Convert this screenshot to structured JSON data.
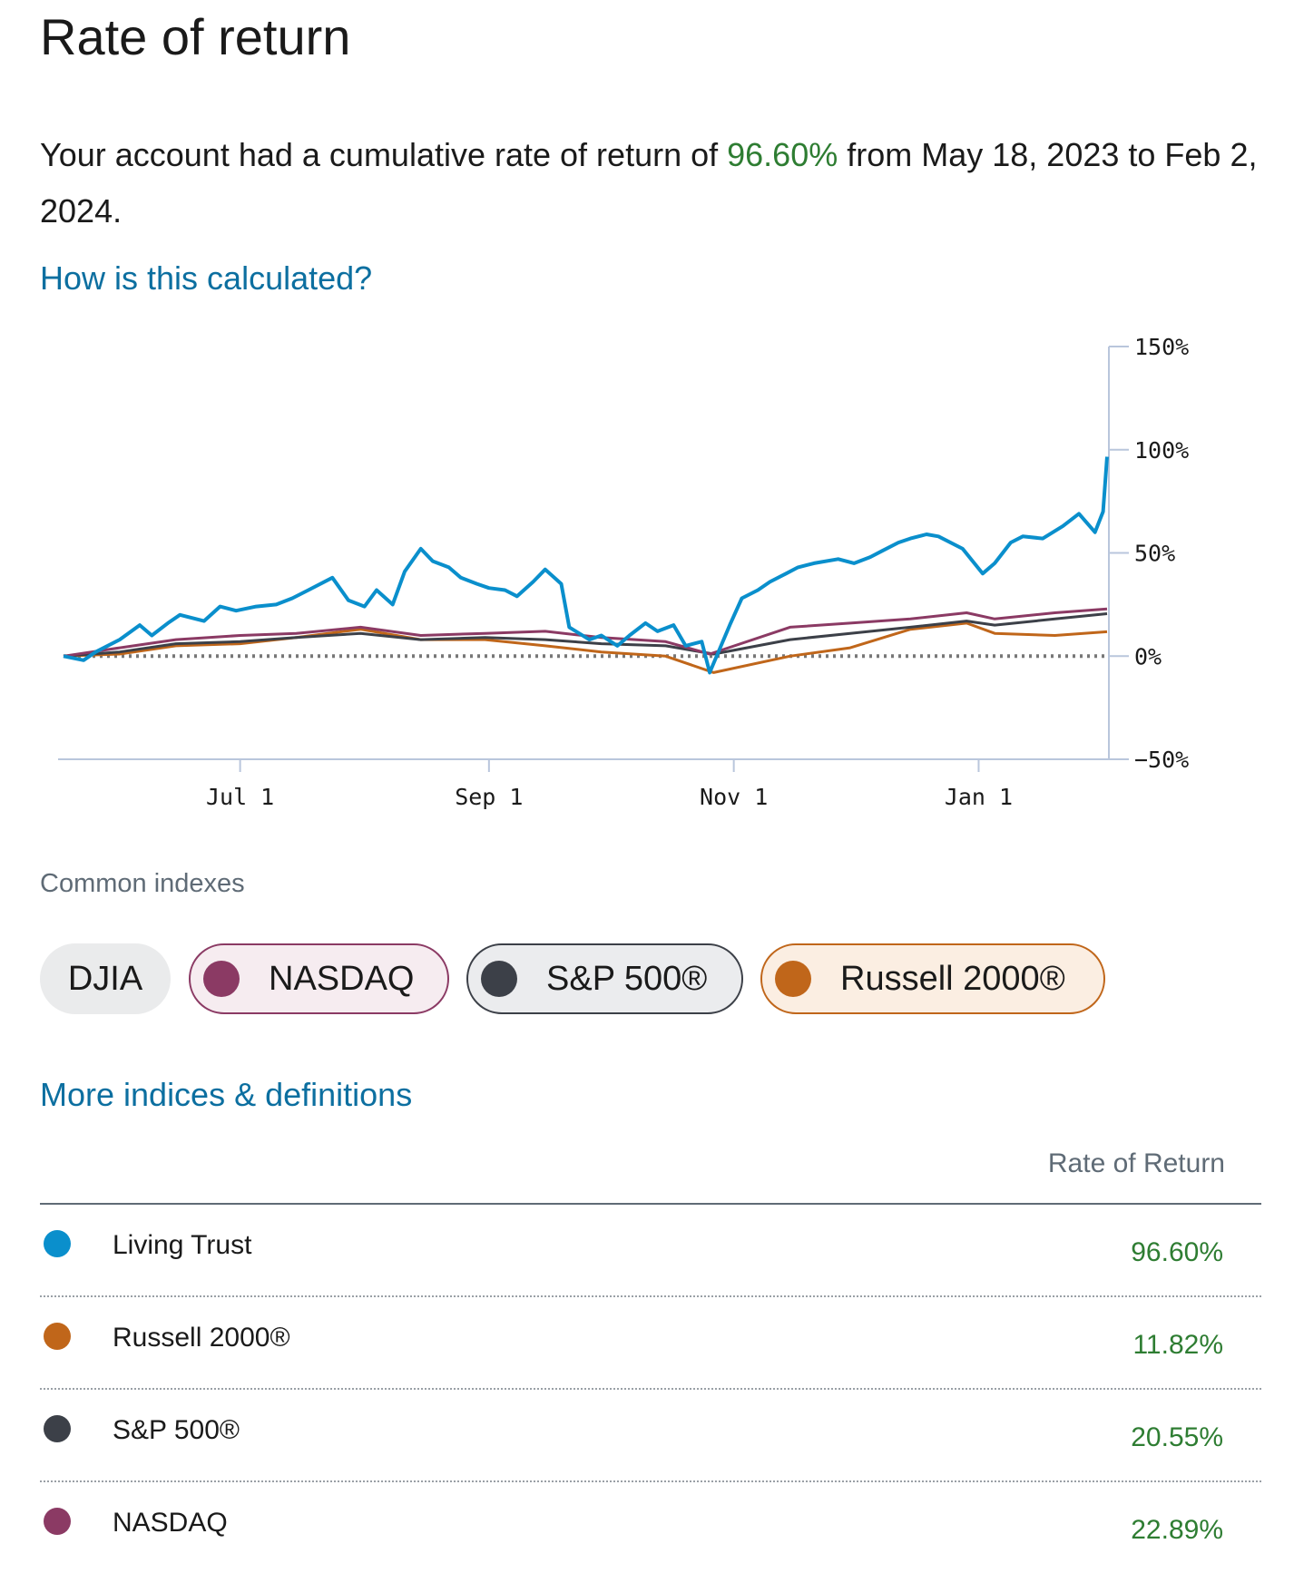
{
  "title": "Rate of return",
  "summary": {
    "prefix": "Your account had a cumulative rate of return of ",
    "value": "96.60%",
    "suffix": " from May 18, 2023 to Feb 2, 2024."
  },
  "how_link": "How is this calculated?",
  "indexes_label": "Common indexes",
  "chips": {
    "djia": "DJIA",
    "nasdaq": "NASDAQ",
    "sp500": "S&P 500®",
    "russell": "Russell 2000®"
  },
  "more_link": "More indices & definitions",
  "table_header": "Rate of Return",
  "table_rows": [
    {
      "name": "Living Trust",
      "value": "96.60%",
      "color": "#0a8fcc"
    },
    {
      "name": "Russell 2000®",
      "value": "11.82%",
      "color": "#c0661a"
    },
    {
      "name": "S&P 500®",
      "value": "20.55%",
      "color": "#3c4048"
    },
    {
      "name": "NASDAQ",
      "value": "22.89%",
      "color": "#8b3a64"
    }
  ],
  "colors": {
    "living_trust": "#0a8fcc",
    "nasdaq": "#8b3a64",
    "sp500": "#3c4048",
    "russell": "#c0661a",
    "positive": "#2e7d32",
    "link": "#0c6fa0"
  },
  "chart_data": {
    "type": "line",
    "x_domain": [
      "2023-05-18",
      "2024-02-02"
    ],
    "ylim": [
      -50,
      150
    ],
    "y_ticks": [
      150,
      100,
      50,
      0,
      -50
    ],
    "y_tick_labels": [
      "150%",
      "100%",
      "50%",
      "0%",
      "−50%"
    ],
    "x_ticks": [
      "2023-07-01",
      "2023-09-01",
      "2023-11-01",
      "2024-01-01"
    ],
    "x_tick_labels": [
      "Jul 1",
      "Sep 1",
      "Nov 1",
      "Jan 1"
    ],
    "y_axis_position": "right",
    "zero_line": "dotted",
    "series": [
      {
        "name": "Living Trust",
        "color": "#0a8fcc",
        "points": [
          [
            "2023-05-18",
            0
          ],
          [
            "2023-05-23",
            -2
          ],
          [
            "2023-05-26",
            2
          ],
          [
            "2023-06-01",
            8
          ],
          [
            "2023-06-06",
            15
          ],
          [
            "2023-06-09",
            10
          ],
          [
            "2023-06-13",
            16
          ],
          [
            "2023-06-16",
            20
          ],
          [
            "2023-06-22",
            17
          ],
          [
            "2023-06-26",
            24
          ],
          [
            "2023-06-30",
            22
          ],
          [
            "2023-07-05",
            24
          ],
          [
            "2023-07-10",
            25
          ],
          [
            "2023-07-14",
            28
          ],
          [
            "2023-07-18",
            32
          ],
          [
            "2023-07-24",
            38
          ],
          [
            "2023-07-28",
            27
          ],
          [
            "2023-08-01",
            24
          ],
          [
            "2023-08-04",
            32
          ],
          [
            "2023-08-08",
            25
          ],
          [
            "2023-08-11",
            41
          ],
          [
            "2023-08-15",
            52
          ],
          [
            "2023-08-18",
            46
          ],
          [
            "2023-08-22",
            43
          ],
          [
            "2023-08-25",
            38
          ],
          [
            "2023-08-29",
            35
          ],
          [
            "2023-09-01",
            33
          ],
          [
            "2023-09-05",
            32
          ],
          [
            "2023-09-08",
            29
          ],
          [
            "2023-09-12",
            36
          ],
          [
            "2023-09-15",
            42
          ],
          [
            "2023-09-19",
            35
          ],
          [
            "2023-09-21",
            14
          ],
          [
            "2023-09-26",
            8
          ],
          [
            "2023-09-29",
            10
          ],
          [
            "2023-10-03",
            5
          ],
          [
            "2023-10-06",
            10
          ],
          [
            "2023-10-10",
            16
          ],
          [
            "2023-10-13",
            12
          ],
          [
            "2023-10-17",
            15
          ],
          [
            "2023-10-20",
            5
          ],
          [
            "2023-10-24",
            7
          ],
          [
            "2023-10-26",
            -8
          ],
          [
            "2023-10-31",
            15
          ],
          [
            "2023-11-03",
            28
          ],
          [
            "2023-11-07",
            32
          ],
          [
            "2023-11-10",
            36
          ],
          [
            "2023-11-14",
            40
          ],
          [
            "2023-11-17",
            43
          ],
          [
            "2023-11-21",
            45
          ],
          [
            "2023-11-27",
            47
          ],
          [
            "2023-12-01",
            45
          ],
          [
            "2023-12-05",
            48
          ],
          [
            "2023-12-08",
            51
          ],
          [
            "2023-12-12",
            55
          ],
          [
            "2023-12-15",
            57
          ],
          [
            "2023-12-19",
            59
          ],
          [
            "2023-12-22",
            58
          ],
          [
            "2023-12-28",
            52
          ],
          [
            "2024-01-02",
            40
          ],
          [
            "2024-01-05",
            45
          ],
          [
            "2024-01-09",
            55
          ],
          [
            "2024-01-12",
            58
          ],
          [
            "2024-01-17",
            57
          ],
          [
            "2024-01-22",
            63
          ],
          [
            "2024-01-26",
            69
          ],
          [
            "2024-01-30",
            60
          ],
          [
            "2024-02-01",
            70
          ],
          [
            "2024-02-02",
            96.6
          ]
        ]
      },
      {
        "name": "NASDAQ",
        "color": "#8b3a64",
        "points": [
          [
            "2023-05-18",
            0
          ],
          [
            "2023-06-01",
            4
          ],
          [
            "2023-06-15",
            8
          ],
          [
            "2023-07-01",
            10
          ],
          [
            "2023-07-15",
            11
          ],
          [
            "2023-07-31",
            14
          ],
          [
            "2023-08-15",
            10
          ],
          [
            "2023-08-31",
            11
          ],
          [
            "2023-09-15",
            12
          ],
          [
            "2023-09-29",
            9
          ],
          [
            "2023-10-15",
            7
          ],
          [
            "2023-10-26",
            1
          ],
          [
            "2023-11-15",
            14
          ],
          [
            "2023-11-30",
            16
          ],
          [
            "2023-12-15",
            18
          ],
          [
            "2023-12-29",
            21
          ],
          [
            "2024-01-05",
            18
          ],
          [
            "2024-01-20",
            21
          ],
          [
            "2024-02-02",
            22.89
          ]
        ]
      },
      {
        "name": "S&P 500®",
        "color": "#3c4048",
        "points": [
          [
            "2023-05-18",
            0
          ],
          [
            "2023-06-01",
            2
          ],
          [
            "2023-06-15",
            6
          ],
          [
            "2023-07-01",
            7
          ],
          [
            "2023-07-15",
            9
          ],
          [
            "2023-07-31",
            11
          ],
          [
            "2023-08-15",
            8
          ],
          [
            "2023-08-31",
            9
          ],
          [
            "2023-09-15",
            8
          ],
          [
            "2023-09-29",
            6
          ],
          [
            "2023-10-15",
            5
          ],
          [
            "2023-10-27",
            1
          ],
          [
            "2023-11-15",
            8
          ],
          [
            "2023-11-30",
            11
          ],
          [
            "2023-12-15",
            14
          ],
          [
            "2023-12-29",
            17
          ],
          [
            "2024-01-05",
            15
          ],
          [
            "2024-01-20",
            18
          ],
          [
            "2024-02-02",
            20.55
          ]
        ]
      },
      {
        "name": "Russell 2000®",
        "color": "#c0661a",
        "points": [
          [
            "2023-05-18",
            0
          ],
          [
            "2023-06-01",
            1
          ],
          [
            "2023-06-15",
            5
          ],
          [
            "2023-07-01",
            6
          ],
          [
            "2023-07-15",
            9
          ],
          [
            "2023-07-31",
            13
          ],
          [
            "2023-08-15",
            8
          ],
          [
            "2023-08-31",
            8
          ],
          [
            "2023-09-15",
            5
          ],
          [
            "2023-09-29",
            2
          ],
          [
            "2023-10-15",
            0
          ],
          [
            "2023-10-27",
            -8
          ],
          [
            "2023-11-15",
            0
          ],
          [
            "2023-11-30",
            4
          ],
          [
            "2023-12-15",
            13
          ],
          [
            "2023-12-29",
            16
          ],
          [
            "2024-01-05",
            11
          ],
          [
            "2024-01-20",
            10
          ],
          [
            "2024-02-02",
            11.82
          ]
        ]
      }
    ]
  }
}
